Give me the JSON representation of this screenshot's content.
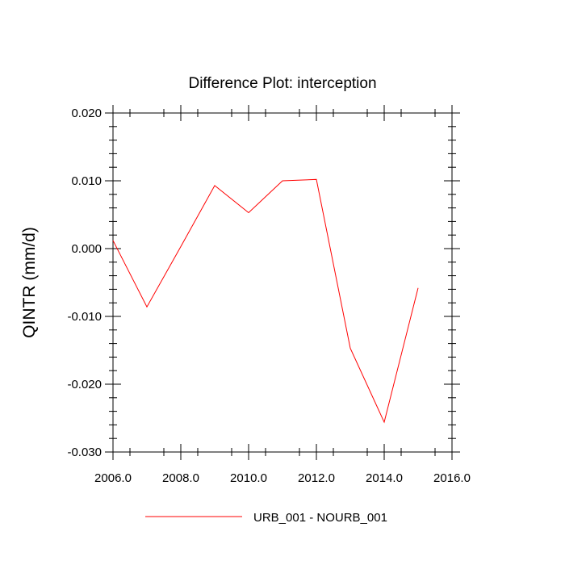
{
  "chart_data": {
    "type": "line",
    "title": "Difference Plot: interception",
    "xlabel": "",
    "ylabel": "QINTR  (mm/d)",
    "xlim": [
      2006.0,
      2016.0
    ],
    "ylim": [
      -0.03,
      0.02
    ],
    "xticks": [
      2006.0,
      2008.0,
      2010.0,
      2012.0,
      2014.0,
      2016.0
    ],
    "xtick_labels": [
      "2006.0",
      "2008.0",
      "2010.0",
      "2012.0",
      "2014.0",
      "2016.0"
    ],
    "yticks": [
      0.02,
      0.01,
      0.0,
      -0.01,
      -0.02,
      -0.03
    ],
    "ytick_labels": [
      "0.020",
      "0.010",
      "0.000",
      "-0.010",
      "-0.020",
      "-0.030"
    ],
    "grid": false,
    "legend_position": "bottom-center",
    "series": [
      {
        "name": "URB_001 - NOURB_001",
        "color": "#ff0000",
        "x": [
          2006,
          2007,
          2008,
          2009,
          2010,
          2011,
          2012,
          2013,
          2014,
          2015
        ],
        "y": [
          0.0012,
          -0.0086,
          0.0003,
          0.0093,
          0.0053,
          0.01,
          0.0102,
          -0.0147,
          -0.0256,
          -0.0058
        ]
      }
    ]
  }
}
